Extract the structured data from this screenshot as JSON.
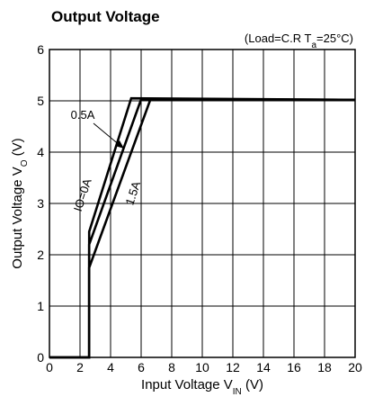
{
  "chart_data": {
    "type": "line",
    "title": "Output Voltage",
    "annotation": {
      "text": "(Load=C.R  T",
      "sub": "a",
      "rest": "=25°C)"
    },
    "xlabel": {
      "text": "Input Voltage V",
      "sub": "IN",
      "rest": " (V)"
    },
    "ylabel": {
      "text": "Output Voltage V",
      "sub": "O",
      "rest": " (V)"
    },
    "xlim": [
      0,
      20
    ],
    "ylim": [
      0,
      6
    ],
    "xticks": [
      0,
      2,
      4,
      6,
      8,
      10,
      12,
      14,
      16,
      18,
      20
    ],
    "yticks": [
      0,
      1,
      2,
      3,
      4,
      5,
      6
    ],
    "grid": true,
    "series": [
      {
        "name": "IO=0A",
        "color": "#000000",
        "x": [
          0,
          2.6,
          2.6,
          5.35,
          20
        ],
        "values": [
          0,
          0,
          2.45,
          5.05,
          5.02
        ]
      },
      {
        "name": "0.5A",
        "color": "#000000",
        "x": [
          0,
          2.6,
          2.6,
          6.0,
          20
        ],
        "values": [
          0,
          0,
          2.2,
          5.03,
          5.02
        ]
      },
      {
        "name": "1.5A",
        "color": "#000000",
        "x": [
          0,
          2.6,
          2.6,
          6.6,
          20
        ],
        "values": [
          0,
          0,
          1.75,
          5.02,
          5.02
        ]
      }
    ]
  }
}
